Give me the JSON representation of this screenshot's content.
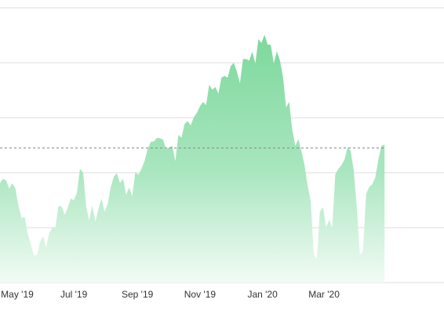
{
  "chart_data": {
    "type": "area",
    "title": "",
    "xlabel": "",
    "ylabel": "",
    "x_ticks": [
      "May '19",
      "Jul '19",
      "Sep '19",
      "Nov '19",
      "Jan '20",
      "Mar '20"
    ],
    "x_tick_dates": [
      "2019-05-01",
      "2019-07-01",
      "2019-09-01",
      "2019-11-01",
      "2020-01-01",
      "2020-03-01"
    ],
    "xlim": [
      "2019-04-20",
      "2020-06-26"
    ],
    "ylim": [
      0,
      5
    ],
    "y_gridlines": [
      0,
      1,
      2,
      3,
      4,
      5
    ],
    "grid": true,
    "legend": "none",
    "reference_line": 2.45,
    "series": [
      {
        "x": [
          "2019-04-20",
          "2019-04-23",
          "2019-04-26",
          "2019-04-29",
          "2019-05-02",
          "2019-05-05",
          "2019-05-08",
          "2019-05-11",
          "2019-05-14",
          "2019-05-17",
          "2019-05-20",
          "2019-05-23",
          "2019-05-26",
          "2019-05-29",
          "2019-06-01",
          "2019-06-04",
          "2019-06-07",
          "2019-06-10",
          "2019-06-13",
          "2019-06-16",
          "2019-06-19",
          "2019-06-22",
          "2019-06-25",
          "2019-06-28",
          "2019-07-01",
          "2019-07-04",
          "2019-07-07",
          "2019-07-10",
          "2019-07-13",
          "2019-07-16",
          "2019-07-19",
          "2019-07-22",
          "2019-07-25",
          "2019-07-28",
          "2019-07-31",
          "2019-08-03",
          "2019-08-06",
          "2019-08-09",
          "2019-08-12",
          "2019-08-15",
          "2019-08-18",
          "2019-08-21",
          "2019-08-24",
          "2019-08-27",
          "2019-08-30",
          "2019-09-02",
          "2019-09-05",
          "2019-09-08",
          "2019-09-11",
          "2019-09-14",
          "2019-09-17",
          "2019-09-20",
          "2019-09-23",
          "2019-09-26",
          "2019-09-29",
          "2019-10-02",
          "2019-10-05",
          "2019-10-08",
          "2019-10-11",
          "2019-10-14",
          "2019-10-17",
          "2019-10-20",
          "2019-10-23",
          "2019-10-26",
          "2019-10-29",
          "2019-11-01",
          "2019-11-04",
          "2019-11-07",
          "2019-11-10",
          "2019-11-13",
          "2019-11-16",
          "2019-11-19",
          "2019-11-22",
          "2019-11-25",
          "2019-11-28",
          "2019-12-01",
          "2019-12-04",
          "2019-12-07",
          "2019-12-10",
          "2019-12-13",
          "2019-12-16",
          "2019-12-19",
          "2019-12-22",
          "2019-12-25",
          "2019-12-28",
          "2019-12-31",
          "2020-01-03",
          "2020-01-06",
          "2020-01-09",
          "2020-01-12",
          "2020-01-15",
          "2020-01-18",
          "2020-01-21",
          "2020-01-24",
          "2020-01-27",
          "2020-01-30",
          "2020-02-02",
          "2020-02-05",
          "2020-02-08",
          "2020-02-11",
          "2020-02-14",
          "2020-02-17",
          "2020-02-20",
          "2020-02-23",
          "2020-02-26",
          "2020-02-29",
          "2020-03-03",
          "2020-03-06",
          "2020-03-09",
          "2020-03-12",
          "2020-03-15",
          "2020-03-18",
          "2020-03-21",
          "2020-03-24",
          "2020-03-27",
          "2020-03-30",
          "2020-04-02",
          "2020-04-05",
          "2020-04-08",
          "2020-04-11",
          "2020-04-14",
          "2020-04-17",
          "2020-04-20",
          "2020-04-23",
          "2020-04-26",
          "2020-04-29"
        ],
        "values": [
          1.81,
          1.89,
          1.86,
          1.71,
          1.81,
          1.71,
          1.4,
          1.17,
          1.2,
          0.89,
          0.7,
          0.49,
          0.5,
          0.74,
          0.84,
          0.63,
          0.9,
          1.0,
          1.0,
          1.39,
          1.39,
          1.23,
          1.36,
          1.53,
          1.5,
          1.63,
          2.07,
          2.0,
          1.39,
          1.13,
          1.4,
          1.11,
          1.34,
          1.53,
          1.29,
          1.43,
          1.74,
          1.93,
          1.99,
          1.81,
          1.89,
          1.6,
          1.73,
          1.57,
          2.01,
          1.96,
          2.07,
          2.21,
          2.43,
          2.56,
          2.57,
          2.63,
          2.63,
          2.6,
          2.43,
          2.46,
          2.49,
          2.21,
          2.69,
          2.64,
          2.89,
          2.94,
          2.86,
          3.01,
          3.09,
          3.21,
          3.29,
          3.23,
          3.6,
          3.51,
          3.56,
          3.44,
          3.73,
          3.76,
          3.73,
          3.94,
          4.0,
          3.84,
          3.63,
          4.07,
          4.07,
          4.04,
          4.2,
          3.99,
          4.43,
          4.36,
          4.51,
          4.33,
          4.33,
          3.99,
          4.21,
          4.04,
          3.74,
          3.19,
          3.29,
          2.79,
          2.49,
          2.61,
          2.39,
          2.14,
          1.77,
          1.49,
          0.5,
          0.43,
          1.29,
          1.37,
          1.01,
          1.14,
          1.0,
          1.97,
          2.07,
          2.14,
          2.24,
          2.46,
          2.4,
          2.03,
          1.36,
          0.5,
          0.57,
          1.61,
          1.74,
          1.79,
          1.91,
          2.24,
          2.49,
          2.51
        ]
      }
    ]
  },
  "colors": {
    "area_top": "#7dd89c",
    "area_bottom": "#f2fbf5",
    "grid": "#dddddd",
    "reference_line": "#888888",
    "axis_text": "#333333"
  }
}
